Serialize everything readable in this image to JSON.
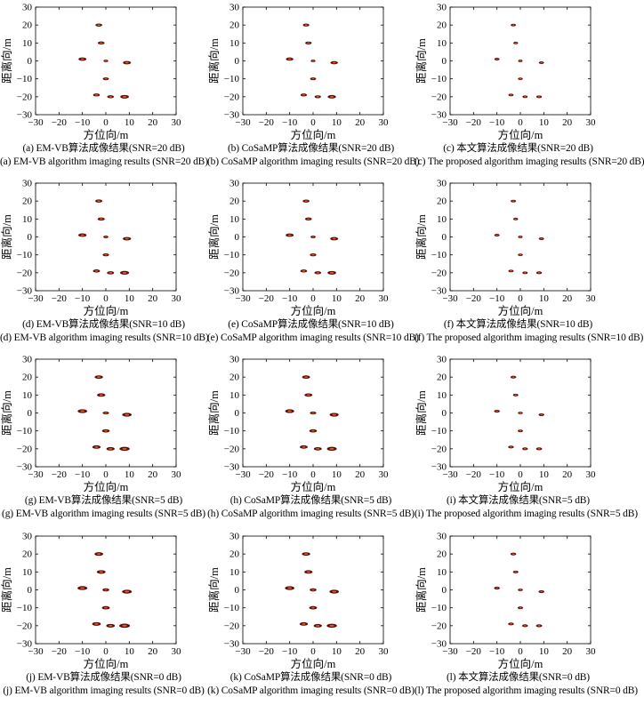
{
  "figure": {
    "panels": [
      {
        "caption_cn": "(a) EM-VB算法成像结果(SNR=20 dB)",
        "caption_en": "(a) EM-VB algorithm imaging results (SNR=20 dB)"
      },
      {
        "caption_cn": "(b) CoSaMP算法成像结果(SNR=20 dB)",
        "caption_en": "(b) CoSaMP algorithm imaging results (SNR=20 dB)"
      },
      {
        "caption_cn": "(c) 本文算法成像结果(SNR=20 dB)",
        "caption_en": "(c) The proposed algorithm imaging results (SNR=20 dB)"
      },
      {
        "caption_cn": "(d) EM-VB算法成像结果(SNR=10 dB)",
        "caption_en": "(d) EM-VB algorithm imaging results (SNR=10 dB)"
      },
      {
        "caption_cn": "(e) CoSaMP算法成像结果(SNR=10 dB)",
        "caption_en": "(e) CoSaMP algorithm imaging results (SNR=10 dB)"
      },
      {
        "caption_cn": "(f) 本文算法成像结果(SNR=10 dB)",
        "caption_en": "(f) The proposed algorithm imaging results (SNR=10 dB)"
      },
      {
        "caption_cn": "(g) EM-VB算法成像结果(SNR=5 dB)",
        "caption_en": "(g) EM-VB algorithm imaging results (SNR=5 dB)"
      },
      {
        "caption_cn": "(h) CoSaMP算法成像结果(SNR=5 dB)",
        "caption_en": "(h) CoSaMP algorithm imaging results (SNR=5 dB)"
      },
      {
        "caption_cn": "(i) 本文算法成像结果(SNR=5 dB)",
        "caption_en": "(i) The proposed algorithm imaging results (SNR=5 dB)"
      },
      {
        "caption_cn": "(j) EM-VB算法成像结果(SNR=0 dB)",
        "caption_en": "(j) EM-VB algorithm imaging results (SNR=0 dB)"
      },
      {
        "caption_cn": "(k) CoSaMP算法成像结果(SNR=0 dB)",
        "caption_en": "(k) CoSaMP algorithm imaging results (SNR=0 dB)"
      },
      {
        "caption_cn": "(l) 本文算法成像结果(SNR=0 dB)",
        "caption_en": "(l) The proposed algorithm imaging results (SNR=0 dB)"
      }
    ]
  },
  "chart_data": {
    "type": "scatter",
    "xlabel": "方位向/m",
    "ylabel": "距离向/m",
    "xlim": [
      -30,
      30
    ],
    "ylim": [
      -30,
      30
    ],
    "xticks": [
      -30,
      -20,
      -10,
      0,
      10,
      20,
      30
    ],
    "yticks": [
      30,
      20,
      10,
      0,
      -10,
      -20,
      -30
    ],
    "grid": false,
    "points": [
      {
        "x": -3,
        "y": 20
      },
      {
        "x": -2,
        "y": 10
      },
      {
        "x": -10,
        "y": 1
      },
      {
        "x": 0,
        "y": 0
      },
      {
        "x": 9,
        "y": -1
      },
      {
        "x": 0,
        "y": -10
      },
      {
        "x": -4,
        "y": -19
      },
      {
        "x": 2,
        "y": -20
      },
      {
        "x": 8,
        "y": -20
      }
    ],
    "point_size_by_algorithm": {
      "EM-VB": [
        1,
        1,
        1.3,
        0.5,
        1.3,
        0.8,
        1,
        1,
        1.5
      ],
      "CoSaMP": [
        0.9,
        0.9,
        1.2,
        0.5,
        1.2,
        0.8,
        0.9,
        0.9,
        1.4
      ],
      "Proposed": [
        0.6,
        0.5,
        0.6,
        0.4,
        0.6,
        0.5,
        0.6,
        0.6,
        0.7
      ]
    }
  }
}
